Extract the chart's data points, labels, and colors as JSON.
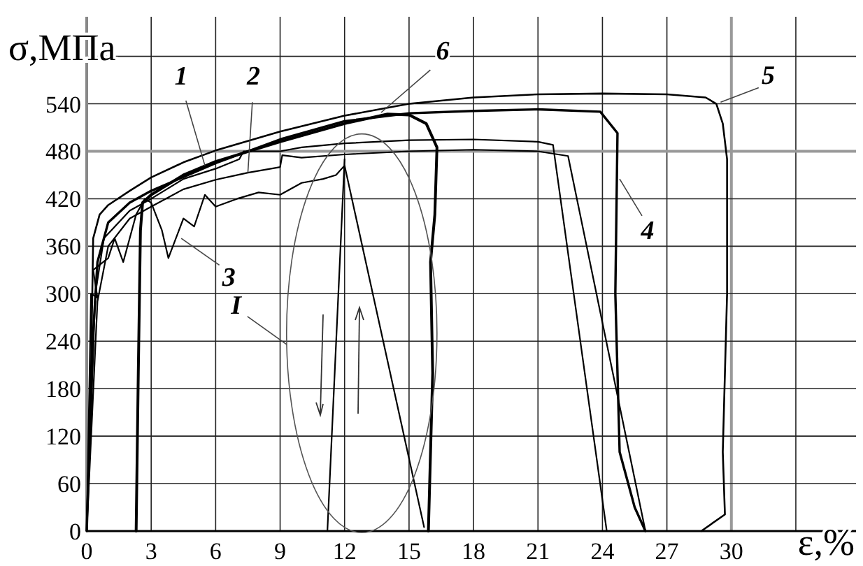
{
  "chart_data": {
    "type": "line",
    "xlabel": "ε,%",
    "ylabel": "σ,МПа",
    "xlim": [
      0,
      35.8
    ],
    "ylim": [
      0,
      650
    ],
    "xticks": [
      0,
      3,
      6,
      9,
      12,
      15,
      18,
      21,
      24,
      27,
      30,
      {
        "value": 33,
        "label": null
      }
    ],
    "yticks": [
      0,
      60,
      120,
      180,
      240,
      300,
      360,
      420,
      480,
      540,
      {
        "value": 600,
        "label": null
      }
    ],
    "grid": true,
    "line_style": "solid",
    "series": [
      {
        "color": "#000000",
        "x": [
          0,
          0.4,
          0.8,
          2,
          3,
          4.5,
          6,
          7.1,
          7.3,
          9,
          10,
          12,
          15,
          18,
          21,
          21.7,
          24.2
        ],
        "values": [
          0,
          300,
          370,
          405,
          420,
          445,
          458,
          470,
          480,
          480,
          485,
          490,
          494,
          495,
          492,
          488,
          0
        ]
      },
      {
        "color": "#000000",
        "x": [
          0,
          0.5,
          1,
          2,
          3,
          4.5,
          6,
          7.5,
          9,
          9.1,
          10,
          12,
          15,
          18,
          21,
          22.4,
          26
        ],
        "values": [
          0,
          290,
          360,
          395,
          410,
          432,
          444,
          453,
          460,
          475,
          472,
          476,
          480,
          482,
          480,
          474,
          0
        ]
      },
      {
        "color": "#000000",
        "x": [
          0,
          0.2,
          0.5,
          0.3,
          1,
          1.3,
          1.7,
          2.3,
          2.7,
          3,
          3.5,
          3.8,
          4.5,
          5,
          5.5,
          6,
          7,
          8,
          9,
          10,
          11,
          11.6,
          12,
          15.7,
          12,
          11.2,
          12
        ],
        "values": [
          0,
          300,
          295,
          330,
          345,
          370,
          340,
          400,
          420,
          415,
          380,
          345,
          395,
          385,
          425,
          410,
          420,
          428,
          425,
          440,
          445,
          450,
          462,
          5,
          null,
          0,
          470
        ]
      },
      {
        "color": "#000000",
        "x": [
          0,
          0.3,
          0.5,
          1,
          2,
          3,
          6,
          9,
          12,
          15,
          18,
          21,
          23.9,
          24.7,
          24.6,
          24.8,
          25.5,
          26
        ],
        "values": [
          0,
          250,
          340,
          390,
          415,
          430,
          465,
          495,
          518,
          528,
          531,
          533,
          530,
          503,
          300,
          100,
          30,
          0
        ]
      },
      {
        "color": "#000000",
        "x": [
          0,
          0.2,
          0.3,
          0.6,
          1,
          2,
          3,
          4.5,
          6,
          9,
          12,
          15,
          18,
          21,
          24,
          27,
          28.8,
          29.3,
          29.6,
          29.8,
          29.8,
          29.6,
          29.7,
          28.6
        ],
        "values": [
          0,
          200,
          370,
          400,
          412,
          430,
          447,
          466,
          481,
          505,
          525,
          540,
          548,
          552,
          553,
          552,
          548,
          540,
          515,
          470,
          300,
          100,
          21,
          0
        ]
      },
      {
        "color": "#000000",
        "x": [
          2.3,
          2.4,
          2.5,
          2.6,
          3,
          4.5,
          6,
          9,
          12,
          14,
          15,
          15.8,
          16.3,
          16.2,
          16,
          16.1,
          15.9
        ],
        "values": [
          0,
          200,
          380,
          415,
          425,
          450,
          467,
          492,
          515,
          527,
          526,
          515,
          485,
          400,
          340,
          200,
          0
        ]
      }
    ],
    "annotations": [
      {
        "text": "1",
        "x": 5.5,
        "y": 462
      },
      {
        "text": "2",
        "x": 7.5,
        "y": 453
      },
      {
        "text": "3",
        "x": 4.4,
        "y": 370
      },
      {
        "text": "4",
        "x": 24.8,
        "y": 445
      },
      {
        "text": "5",
        "x": 29.5,
        "y": 542
      },
      {
        "text": "6",
        "x": 13.7,
        "y": 529
      },
      "I"
    ]
  }
}
